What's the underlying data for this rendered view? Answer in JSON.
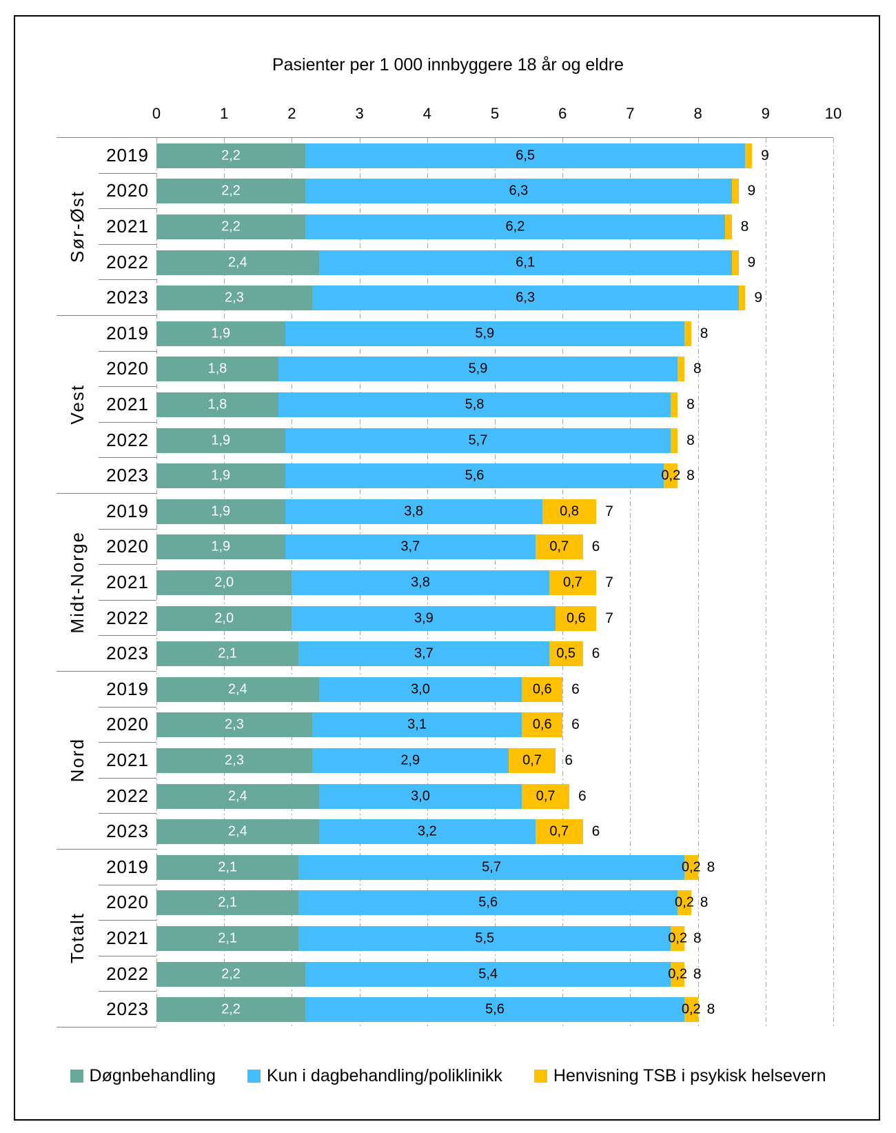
{
  "chart_data": {
    "type": "bar",
    "orientation": "horizontal-stacked",
    "title": "Pasienter per 1 000 innbyggere 18 år og eldre",
    "x_axis": {
      "min": 0,
      "max": 10,
      "ticks": [
        "0",
        "1",
        "2",
        "3",
        "4",
        "5",
        "6",
        "7",
        "8",
        "9",
        "10"
      ],
      "grid": "dash-dot"
    },
    "legend_position": "bottom",
    "series": [
      {
        "key": "dognbehandling",
        "name": "Døgnbehandling",
        "color": "#68A99B"
      },
      {
        "key": "dagbehandling",
        "name": "Kun i dagbehandling/poliklinikk",
        "color": "#45BDFC"
      },
      {
        "key": "henvisning",
        "name": "Henvisning TSB i psykisk helsevern",
        "color": "#FFC000"
      }
    ],
    "groups": [
      {
        "name": "Sør-Øst",
        "rows": [
          {
            "year": "2019",
            "values": [
              2.2,
              6.5,
              0.1
            ],
            "labels": [
              "2,2",
              "6,5",
              ""
            ],
            "total": "9"
          },
          {
            "year": "2020",
            "values": [
              2.2,
              6.3,
              0.1
            ],
            "labels": [
              "2,2",
              "6,3",
              ""
            ],
            "total": "9"
          },
          {
            "year": "2021",
            "values": [
              2.2,
              6.2,
              0.1
            ],
            "labels": [
              "2,2",
              "6,2",
              ""
            ],
            "total": "8"
          },
          {
            "year": "2022",
            "values": [
              2.4,
              6.1,
              0.1
            ],
            "labels": [
              "2,4",
              "6,1",
              ""
            ],
            "total": "9"
          },
          {
            "year": "2023",
            "values": [
              2.3,
              6.3,
              0.1
            ],
            "labels": [
              "2,3",
              "6,3",
              ""
            ],
            "total": "9"
          }
        ]
      },
      {
        "name": "Vest",
        "rows": [
          {
            "year": "2019",
            "values": [
              1.9,
              5.9,
              0.1
            ],
            "labels": [
              "1,9",
              "5,9",
              ""
            ],
            "total": "8"
          },
          {
            "year": "2020",
            "values": [
              1.8,
              5.9,
              0.1
            ],
            "labels": [
              "1,8",
              "5,9",
              ""
            ],
            "total": "8"
          },
          {
            "year": "2021",
            "values": [
              1.8,
              5.8,
              0.1
            ],
            "labels": [
              "1,8",
              "5,8",
              ""
            ],
            "total": "8"
          },
          {
            "year": "2022",
            "values": [
              1.9,
              5.7,
              0.1
            ],
            "labels": [
              "1,9",
              "5,7",
              ""
            ],
            "total": "8"
          },
          {
            "year": "2023",
            "values": [
              1.9,
              5.6,
              0.2
            ],
            "labels": [
              "1,9",
              "5,6",
              "0,2"
            ],
            "total": "8"
          }
        ]
      },
      {
        "name": "Midt-Norge",
        "rows": [
          {
            "year": "2019",
            "values": [
              1.9,
              3.8,
              0.8
            ],
            "labels": [
              "1,9",
              "3,8",
              "0,8"
            ],
            "total": "7"
          },
          {
            "year": "2020",
            "values": [
              1.9,
              3.7,
              0.7
            ],
            "labels": [
              "1,9",
              "3,7",
              "0,7"
            ],
            "total": "6"
          },
          {
            "year": "2021",
            "values": [
              2.0,
              3.8,
              0.7
            ],
            "labels": [
              "2,0",
              "3,8",
              "0,7"
            ],
            "total": "7"
          },
          {
            "year": "2022",
            "values": [
              2.0,
              3.9,
              0.6
            ],
            "labels": [
              "2,0",
              "3,9",
              "0,6"
            ],
            "total": "7"
          },
          {
            "year": "2023",
            "values": [
              2.1,
              3.7,
              0.5
            ],
            "labels": [
              "2,1",
              "3,7",
              "0,5"
            ],
            "total": "6"
          }
        ]
      },
      {
        "name": "Nord",
        "rows": [
          {
            "year": "2019",
            "values": [
              2.4,
              3.0,
              0.6
            ],
            "labels": [
              "2,4",
              "3,0",
              "0,6"
            ],
            "total": "6"
          },
          {
            "year": "2020",
            "values": [
              2.3,
              3.1,
              0.6
            ],
            "labels": [
              "2,3",
              "3,1",
              "0,6"
            ],
            "total": "6"
          },
          {
            "year": "2021",
            "values": [
              2.3,
              2.9,
              0.7
            ],
            "labels": [
              "2,3",
              "2,9",
              "0,7"
            ],
            "total": "6"
          },
          {
            "year": "2022",
            "values": [
              2.4,
              3.0,
              0.7
            ],
            "labels": [
              "2,4",
              "3,0",
              "0,7"
            ],
            "total": "6"
          },
          {
            "year": "2023",
            "values": [
              2.4,
              3.2,
              0.7
            ],
            "labels": [
              "2,4",
              "3,2",
              "0,7"
            ],
            "total": "6"
          }
        ]
      },
      {
        "name": "Totalt",
        "rows": [
          {
            "year": "2019",
            "values": [
              2.1,
              5.7,
              0.2
            ],
            "labels": [
              "2,1",
              "5,7",
              "0,2"
            ],
            "total": "8"
          },
          {
            "year": "2020",
            "values": [
              2.1,
              5.6,
              0.2
            ],
            "labels": [
              "2,1",
              "5,6",
              "0,2"
            ],
            "total": "8"
          },
          {
            "year": "2021",
            "values": [
              2.1,
              5.5,
              0.2
            ],
            "labels": [
              "2,1",
              "5,5",
              "0,2"
            ],
            "total": "8"
          },
          {
            "year": "2022",
            "values": [
              2.2,
              5.4,
              0.2
            ],
            "labels": [
              "2,2",
              "5,4",
              "0,2"
            ],
            "total": "8"
          },
          {
            "year": "2023",
            "values": [
              2.2,
              5.6,
              0.2
            ],
            "labels": [
              "2,2",
              "5,6",
              "0,2"
            ],
            "total": "8"
          }
        ]
      }
    ],
    "line_colors": {
      "axis_line": "#808080",
      "gridline": "#A6A6A6",
      "frame_border": "#000000"
    }
  }
}
